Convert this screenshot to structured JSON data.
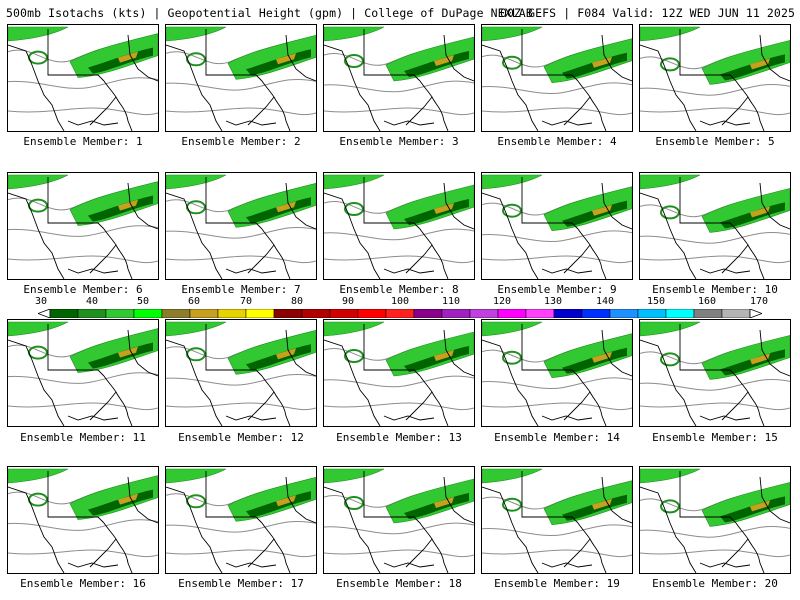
{
  "header": {
    "left": "500mb Isotachs (kts) | Geopotential Height (gpm) | College of DuPage NEXLAB",
    "right": "00Z GEFS | F084 Valid: 12Z WED JUN 11 2025"
  },
  "members": [
    {
      "label": "Ensemble Member: 1"
    },
    {
      "label": "Ensemble Member: 2"
    },
    {
      "label": "Ensemble Member: 3"
    },
    {
      "label": "Ensemble Member: 4"
    },
    {
      "label": "Ensemble Member: 5"
    },
    {
      "label": "Ensemble Member: 6"
    },
    {
      "label": "Ensemble Member: 7"
    },
    {
      "label": "Ensemble Member: 8"
    },
    {
      "label": "Ensemble Member: 9"
    },
    {
      "label": "Ensemble Member: 10"
    },
    {
      "label": "Ensemble Member: 11"
    },
    {
      "label": "Ensemble Member: 12"
    },
    {
      "label": "Ensemble Member: 13"
    },
    {
      "label": "Ensemble Member: 14"
    },
    {
      "label": "Ensemble Member: 15"
    },
    {
      "label": "Ensemble Member: 16"
    },
    {
      "label": "Ensemble Member: 17"
    },
    {
      "label": "Ensemble Member: 18"
    },
    {
      "label": "Ensemble Member: 19"
    },
    {
      "label": "Ensemble Member: 20"
    }
  ],
  "colorbar": {
    "ticks_top": [
      "30",
      "40",
      "50",
      "60",
      "70",
      "80",
      "90",
      "100",
      "110",
      "120",
      "130",
      "140",
      "150",
      "160",
      "170"
    ],
    "colors": [
      "#006400",
      "#1f8f1f",
      "#32c832",
      "#00ff00",
      "#8b7d2a",
      "#c8a020",
      "#e6d200",
      "#ffff00",
      "#8b0000",
      "#b00000",
      "#d00000",
      "#ff0000",
      "#ff2020",
      "#8b008b",
      "#a020c0",
      "#c040e0",
      "#ff00ff",
      "#ff40ff",
      "#0000cd",
      "#0030ff",
      "#1e90ff",
      "#00bfff",
      "#00ffff",
      "#808080",
      "#b4b4b4"
    ]
  }
}
